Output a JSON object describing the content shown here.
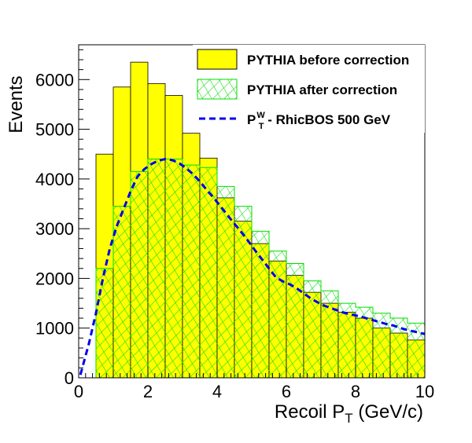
{
  "chart_data": {
    "type": "bar",
    "xlabel": "Recoil P",
    "xlabel_sub": "T",
    "xlabel_unit": " (GeV/c)",
    "ylabel": "Events",
    "xlim": [
      0,
      10
    ],
    "ylim": [
      0,
      6700
    ],
    "x_ticks": [
      0,
      2,
      4,
      6,
      8,
      10
    ],
    "y_ticks": [
      0,
      1000,
      2000,
      3000,
      4000,
      5000,
      6000
    ],
    "bin_edges": [
      0.5,
      1.0,
      1.5,
      2.0,
      2.5,
      3.0,
      3.5,
      4.0,
      4.5,
      5.0,
      5.5,
      6.0,
      6.5,
      7.0,
      7.5,
      8.0,
      8.5,
      9.0,
      9.5,
      10.0
    ],
    "legend_position": "top-right",
    "colors": {
      "before_fill": "#ffff00",
      "after_hatch": "#00dd00",
      "curve": "#0000ee"
    },
    "series": [
      {
        "name": "PYTHIA before correction",
        "style": "filled-histogram",
        "values": [
          4500,
          5850,
          6350,
          5920,
          5680,
          4920,
          4420,
          3620,
          3150,
          2700,
          2350,
          2060,
          1720,
          1500,
          1320,
          1200,
          1000,
          900,
          760
        ]
      },
      {
        "name": "PYTHIA after correction",
        "style": "hatched-histogram",
        "values": [
          2200,
          3450,
          4150,
          4400,
          4400,
          4280,
          4230,
          3850,
          3450,
          2950,
          2550,
          2300,
          1950,
          1750,
          1500,
          1420,
          1300,
          1200,
          1100
        ]
      },
      {
        "name_parts": [
          "P",
          "W",
          "T",
          " - RhicBOS 500 GeV"
        ],
        "style": "dashed-line",
        "x": [
          0.05,
          0.3,
          0.5,
          0.7,
          0.9,
          1.1,
          1.3,
          1.5,
          1.7,
          1.9,
          2.1,
          2.3,
          2.5,
          2.7,
          2.9,
          3.1,
          3.3,
          3.5,
          3.7,
          3.9,
          4.1,
          4.3,
          4.5,
          4.7,
          4.9,
          5.1,
          5.3,
          5.5,
          5.7,
          5.9,
          6.1,
          6.3,
          6.5,
          6.7,
          6.9,
          7.1,
          7.3,
          7.5,
          7.7,
          7.9,
          8.1,
          8.3,
          8.5,
          8.7,
          8.9,
          9.1,
          9.3,
          9.5,
          9.7,
          10.0
        ],
        "y": [
          60,
          700,
          1300,
          2000,
          2600,
          3050,
          3400,
          3750,
          4050,
          4200,
          4300,
          4370,
          4400,
          4380,
          4320,
          4220,
          4100,
          3950,
          3780,
          3620,
          3450,
          3270,
          3100,
          2930,
          2750,
          2560,
          2380,
          2200,
          2020,
          1940,
          1880,
          1800,
          1700,
          1600,
          1520,
          1450,
          1400,
          1350,
          1300,
          1270,
          1240,
          1200,
          1160,
          1120,
          1080,
          1050,
          1000,
          960,
          930,
          880
        ]
      }
    ]
  }
}
